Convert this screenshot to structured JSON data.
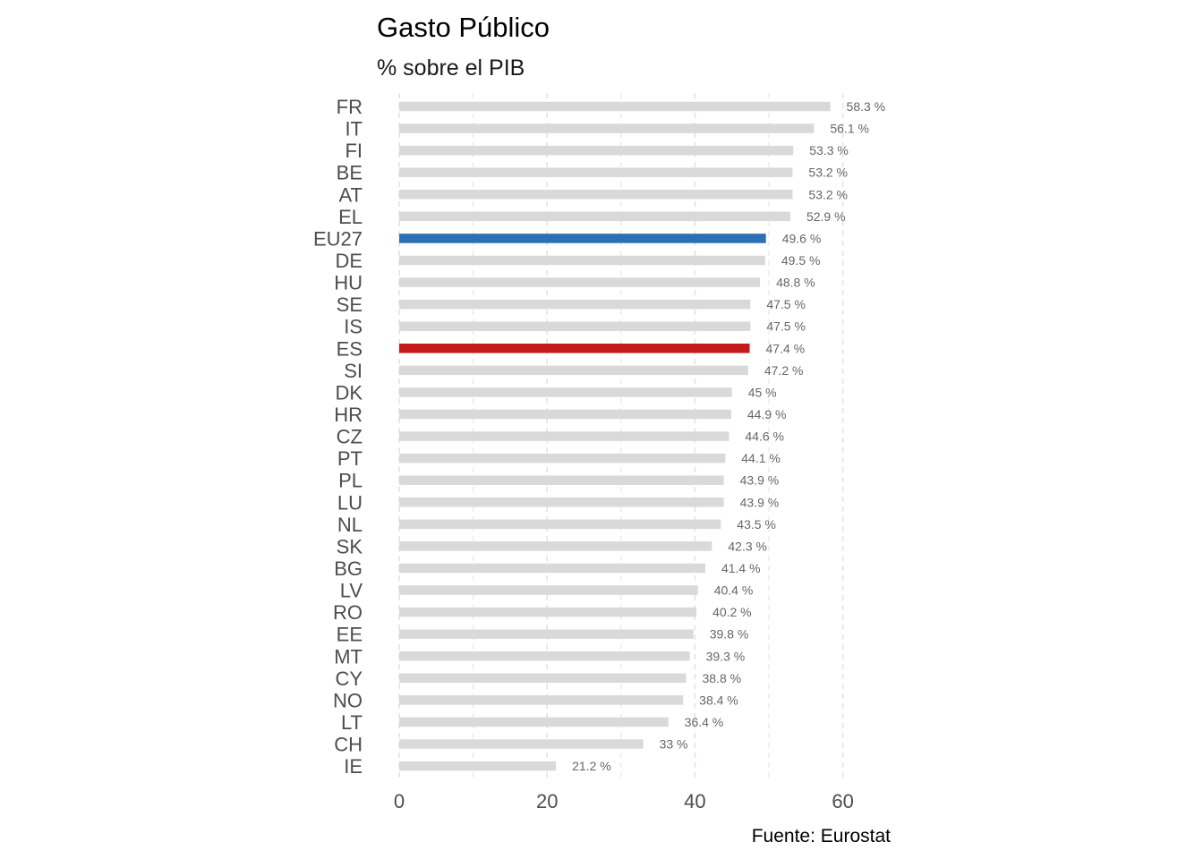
{
  "chart_data": {
    "type": "bar",
    "orientation": "horizontal",
    "title": "Gasto Público",
    "subtitle": "% sobre el PIB",
    "caption": "Fuente: Eurostat",
    "xlabel": "",
    "ylabel": "",
    "xlim": [
      0,
      60
    ],
    "x_ticks": [
      "0",
      "20",
      "40",
      "60"
    ],
    "grid": "vertical dashed",
    "categories": [
      "FR",
      "IT",
      "FI",
      "BE",
      "AT",
      "EL",
      "EU27",
      "DE",
      "HU",
      "SE",
      "IS",
      "ES",
      "SI",
      "DK",
      "HR",
      "CZ",
      "PT",
      "PL",
      "LU",
      "NL",
      "SK",
      "BG",
      "LV",
      "RO",
      "EE",
      "MT",
      "CY",
      "NO",
      "LT",
      "CH",
      "IE"
    ],
    "values": [
      58.3,
      56.1,
      53.3,
      53.2,
      53.2,
      52.9,
      49.6,
      49.5,
      48.8,
      47.5,
      47.5,
      47.4,
      47.2,
      45,
      44.9,
      44.6,
      44.1,
      43.9,
      43.9,
      43.5,
      42.3,
      41.4,
      40.4,
      40.2,
      39.8,
      39.3,
      38.8,
      38.4,
      36.4,
      33,
      21.2
    ],
    "value_labels": [
      "58.3 %",
      "56.1 %",
      "53.3 %",
      "53.2 %",
      "53.2 %",
      "52.9 %",
      "49.6 %",
      "49.5 %",
      "48.8 %",
      "47.5 %",
      "47.5 %",
      "47.4 %",
      "47.2 %",
      "45 %",
      "44.9 %",
      "44.6 %",
      "44.1 %",
      "43.9 %",
      "43.9 %",
      "43.5 %",
      "42.3 %",
      "41.4 %",
      "40.4 %",
      "40.2 %",
      "39.8 %",
      "39.3 %",
      "38.8 %",
      "38.4 %",
      "36.4 %",
      "33 %",
      "21.2 %"
    ],
    "colors": {
      "default": "#d9d9d9",
      "EU27": "#2b6fb6",
      "ES": "#c41a1a",
      "grid": "#e3e3e3",
      "text": "#4d4d4d",
      "value_label": "#666666",
      "title": "#000000"
    }
  }
}
